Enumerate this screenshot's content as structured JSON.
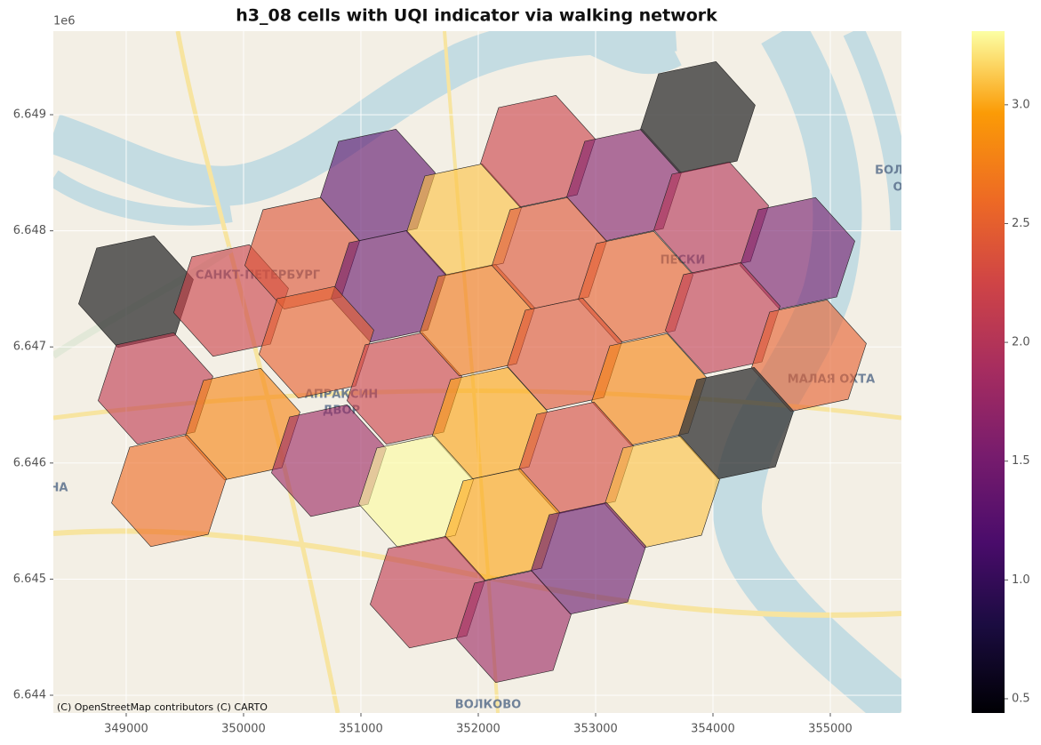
{
  "chart_data": {
    "type": "hexmap",
    "title": "h3_08 cells with UQI indicator via walking network",
    "y_offset_label": "1e6",
    "attribution": "(C) OpenStreetMap contributors (C) CARTO",
    "basemap_labels": [
      "САНКТ-ПЕТЕРБУРГ",
      "ПЕСКИ",
      "АПРАКСИН",
      "ДВОР",
      "МАЛАЯ ОХТА",
      "ВОЛКОВО",
      "БОЛ",
      "О",
      "НА"
    ],
    "xlim": [
      348379,
      355606
    ],
    "ylim": [
      6643847,
      6649720
    ],
    "xticks": [
      349000,
      350000,
      351000,
      352000,
      353000,
      354000,
      355000
    ],
    "yticks": [
      {
        "value": 6644000,
        "label": "6.644"
      },
      {
        "value": 6645000,
        "label": "6.645"
      },
      {
        "value": 6646000,
        "label": "6.646"
      },
      {
        "value": 6647000,
        "label": "6.647"
      },
      {
        "value": 6648000,
        "label": "6.648"
      },
      {
        "value": 6649000,
        "label": "6.649"
      }
    ],
    "grid": true,
    "colormap": "inferno",
    "missing_color": "#3c3c3c",
    "clim": [
      0.44,
      3.31
    ],
    "cticks": [
      0.5,
      {
        "value": 1,
        "label": "1.0"
      },
      1.5,
      {
        "value": 2,
        "label": "2.0"
      },
      2.5,
      {
        "value": 3,
        "label": "3.0"
      }
    ],
    "cells": [
      {
        "x": 349083,
        "y": 6647476,
        "value": null
      },
      {
        "x": 349894,
        "y": 6647400,
        "value": 2.2
      },
      {
        "x": 350500,
        "y": 6647806,
        "value": 2.4
      },
      {
        "x": 351144,
        "y": 6648395,
        "value": 1.3
      },
      {
        "x": 351879,
        "y": 6648096,
        "value": 3.1
      },
      {
        "x": 352508,
        "y": 6648686,
        "value": 2.2
      },
      {
        "x": 353242,
        "y": 6648395,
        "value": 1.6
      },
      {
        "x": 353871,
        "y": 6648977,
        "value": null
      },
      {
        "x": 353985,
        "y": 6648112,
        "value": 2.0
      },
      {
        "x": 354720,
        "y": 6647806,
        "value": 1.5
      },
      {
        "x": 351235,
        "y": 6647522,
        "value": 1.4
      },
      {
        "x": 350621,
        "y": 6647040,
        "value": 2.5
      },
      {
        "x": 349250,
        "y": 6646642,
        "value": 2.1
      },
      {
        "x": 349992,
        "y": 6646335,
        "value": 2.8
      },
      {
        "x": 350727,
        "y": 6646021,
        "value": 1.8
      },
      {
        "x": 351371,
        "y": 6646642,
        "value": 2.2
      },
      {
        "x": 351992,
        "y": 6647231,
        "value": 2.7
      },
      {
        "x": 352606,
        "y": 6647806,
        "value": 2.4
      },
      {
        "x": 353341,
        "y": 6647515,
        "value": 2.5
      },
      {
        "x": 354083,
        "y": 6647247,
        "value": 2.1
      },
      {
        "x": 354818,
        "y": 6646925,
        "value": 2.5
      },
      {
        "x": 352735,
        "y": 6646940,
        "value": 2.4
      },
      {
        "x": 352098,
        "y": 6646343,
        "value": 3.0
      },
      {
        "x": 353455,
        "y": 6646634,
        "value": 2.8
      },
      {
        "x": 354197,
        "y": 6646343,
        "value": null
      },
      {
        "x": 349364,
        "y": 6645761,
        "value": 2.6
      },
      {
        "x": 351470,
        "y": 6645753,
        "value": 3.3
      },
      {
        "x": 352833,
        "y": 6646044,
        "value": 2.3
      },
      {
        "x": 353568,
        "y": 6645753,
        "value": 3.1
      },
      {
        "x": 352205,
        "y": 6645470,
        "value": 3.0
      },
      {
        "x": 352939,
        "y": 6645179,
        "value": 1.4
      },
      {
        "x": 351568,
        "y": 6644888,
        "value": 2.1
      },
      {
        "x": 352303,
        "y": 6644590,
        "value": 1.8
      }
    ]
  }
}
